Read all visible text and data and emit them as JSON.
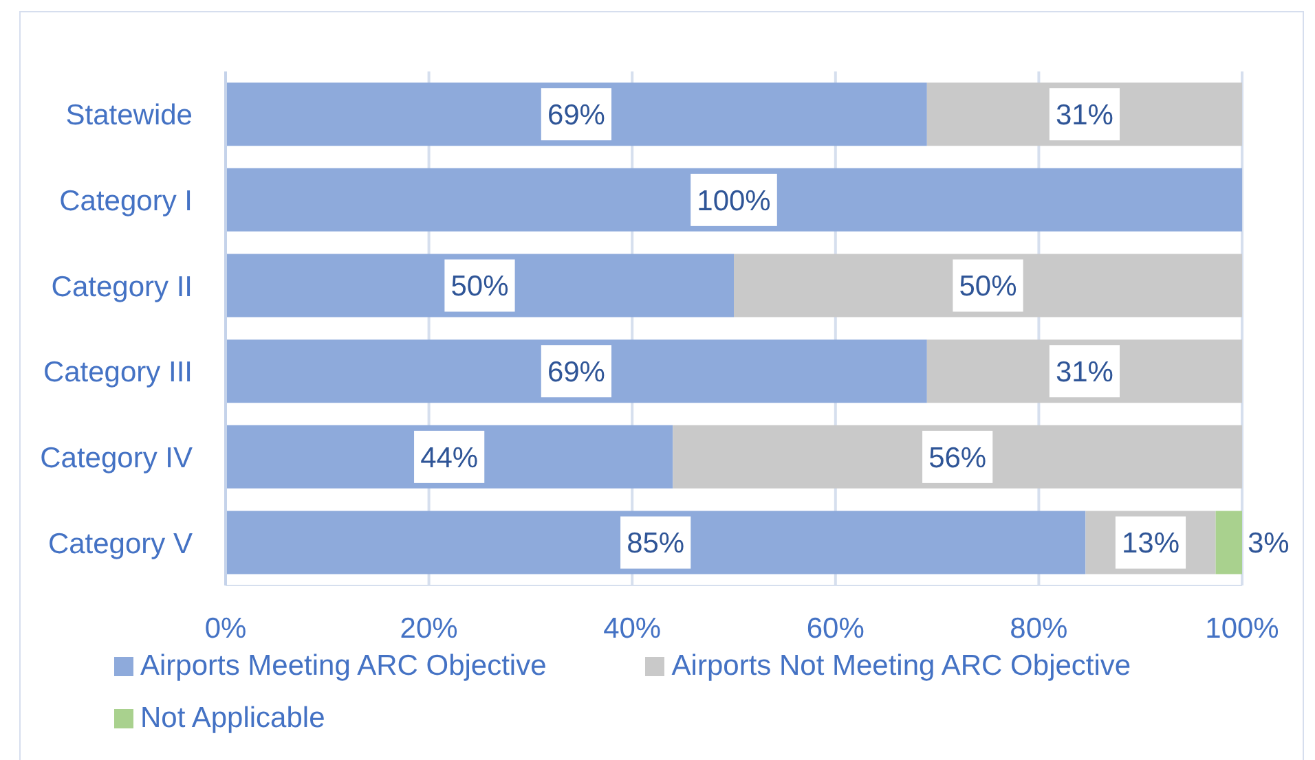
{
  "chart_data": {
    "type": "bar",
    "orientation": "horizontal",
    "stacked": true,
    "categories": [
      "Statewide",
      "Category I",
      "Category II",
      "Category III",
      "Category IV",
      "Category V"
    ],
    "series": [
      {
        "name": "Airports Meeting ARC Objective",
        "color": "#8eaadb",
        "values": [
          69,
          100,
          50,
          69,
          44,
          84.6
        ],
        "value_labels": [
          "69%",
          "100%",
          "50%",
          "69%",
          "44%",
          "85%"
        ]
      },
      {
        "name": "Airports Not Meeting ARC Objective",
        "color": "#c9c9c9",
        "values": [
          31,
          null,
          50,
          31,
          56,
          12.8
        ],
        "value_labels": [
          "31%",
          null,
          "50%",
          "31%",
          "56%",
          "13%"
        ]
      },
      {
        "name": "Not Applicable",
        "color": "#a9d18e",
        "values": [
          null,
          null,
          null,
          null,
          null,
          2.6
        ],
        "value_labels": [
          null,
          null,
          null,
          null,
          null,
          "3%"
        ]
      }
    ],
    "xlim": [
      0,
      100
    ],
    "xticks": [
      {
        "value": 0,
        "label": "0%"
      },
      {
        "value": 20,
        "label": "20%"
      },
      {
        "value": 40,
        "label": "40%"
      },
      {
        "value": 60,
        "label": "60%"
      },
      {
        "value": 80,
        "label": "80%"
      },
      {
        "value": 100,
        "label": "100%"
      }
    ],
    "grid": "x",
    "legend": "bottom"
  }
}
